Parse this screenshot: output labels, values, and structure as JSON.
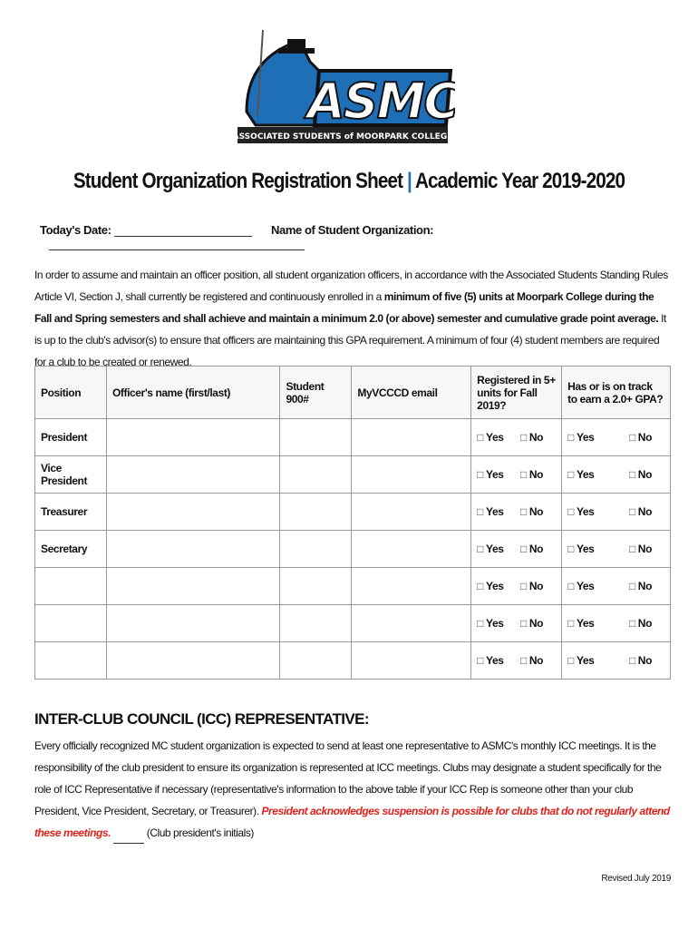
{
  "logo": {
    "text": "ASMC",
    "subtitle": "ASSOCIATED STUDENTS of MOORPARK COLLEGE",
    "color": "#1f6fb8"
  },
  "title": {
    "main": "Student Organization Registration Sheet",
    "separator": "|",
    "year": "Academic Year 2019-2020"
  },
  "fields": {
    "date_label": "Today's Date:",
    "org_label": "Name of Student Organization:"
  },
  "intro": {
    "part1": "In order to assume and maintain an officer position, all student organization officers, in accordance with the Associated Students Standing Rules Article VI, Section J, shall currently be registered and continuously enrolled in a ",
    "bold": "minimum of five (5) units at Moorpark College during the Fall and Spring semesters and shall achieve and maintain a minimum 2.0 (or above) semester and cumulative grade point average.",
    "part2": " It is up to the club's advisor(s) to ensure that officers are maintaining this GPA requirement. A minimum of four (4) student members are required for a club to be created or renewed."
  },
  "table": {
    "headers": [
      "Position",
      "Officer's name (first/last)",
      "Student 900#",
      "MyVCCCD email",
      "Registered in 5+ units for Fall 2019?",
      "Has or is on track to earn a 2.0+ GPA?"
    ],
    "rows": [
      "President",
      "Vice President",
      "Treasurer",
      "Secretary",
      "",
      "",
      ""
    ],
    "yes": "Yes",
    "no": "No",
    "checkbox": "□"
  },
  "icc": {
    "heading": "INTER-CLUB COUNCIL (ICC) REPRESENTATIVE:",
    "text": "Every officially recognized MC student organization is expected to send at least one representative to ASMC's monthly ICC meetings. It is the responsibility of the club president to ensure its organization is represented at ICC meetings. Clubs may designate a student specifically for the role of ICC Representative if necessary (representative's information to the above table if your ICC Rep is someone other than your club President, Vice President, Secretary, or Treasurer). ",
    "warning": "President acknowledges suspension is possible for clubs that do not regularly attend these meetings.",
    "initials": "(Club president's initials)",
    "warning_color": "#e0201b"
  },
  "footer": {
    "revised": "Revised July 2019"
  }
}
